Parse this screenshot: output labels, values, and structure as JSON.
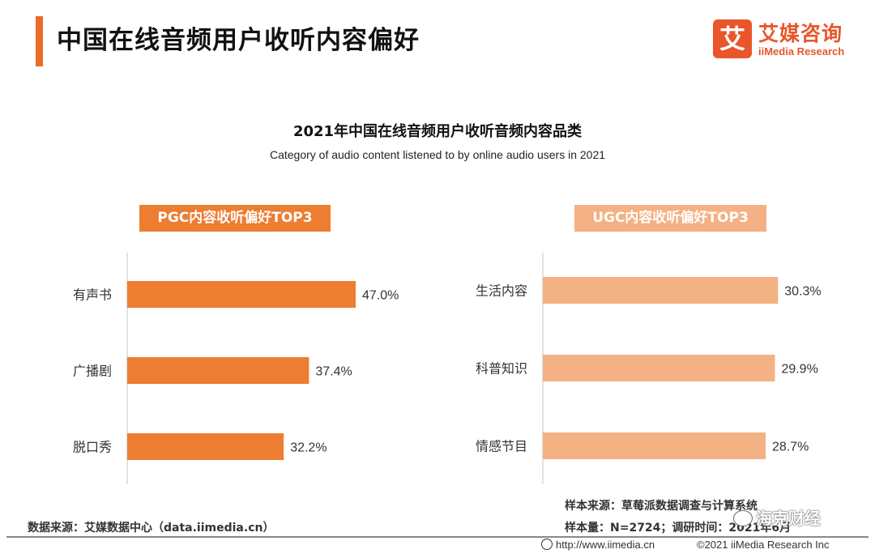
{
  "header": {
    "title": "中国在线音频用户收听内容偏好"
  },
  "logo": {
    "badge_char": "艾",
    "name_cn": "艾媒咨询",
    "name_en": "iiMedia Research"
  },
  "chart": {
    "title": "2021年中国在线音频用户收听音频内容品类",
    "subtitle": "Category of audio content listened to by online audio users in 2021"
  },
  "chart_data": [
    {
      "type": "bar",
      "orientation": "horizontal",
      "title": "PGC内容收听偏好TOP3",
      "categories": [
        "有声书",
        "广播剧",
        "脱口秀"
      ],
      "values": [
        47.0,
        37.4,
        32.2
      ],
      "value_labels": [
        "47.0%",
        "37.4%",
        "32.2%"
      ],
      "unit": "%",
      "xlim": [
        0,
        50
      ],
      "color": "#ed7d31",
      "grid": false
    },
    {
      "type": "bar",
      "orientation": "horizontal",
      "title": "UGC内容收听偏好TOP3",
      "categories": [
        "生活内容",
        "科普知识",
        "情感节目"
      ],
      "values": [
        30.3,
        29.9,
        28.7
      ],
      "value_labels": [
        "30.3%",
        "29.9%",
        "28.7%"
      ],
      "unit": "%",
      "xlim": [
        0,
        50
      ],
      "color": "#f4b183",
      "grid": false
    }
  ],
  "footer": {
    "data_source": "数据来源：艾媒数据中心（data.iimedia.cn）",
    "sample_source": "样本来源：草莓派数据调查与计算系统",
    "sample_size": "样本量：N=2724；调研时间：2021年6月",
    "url": "http://www.iimedia.cn",
    "copyright": "©2021  iiMedia Research  Inc"
  },
  "watermark": {
    "text": "海克财经"
  }
}
